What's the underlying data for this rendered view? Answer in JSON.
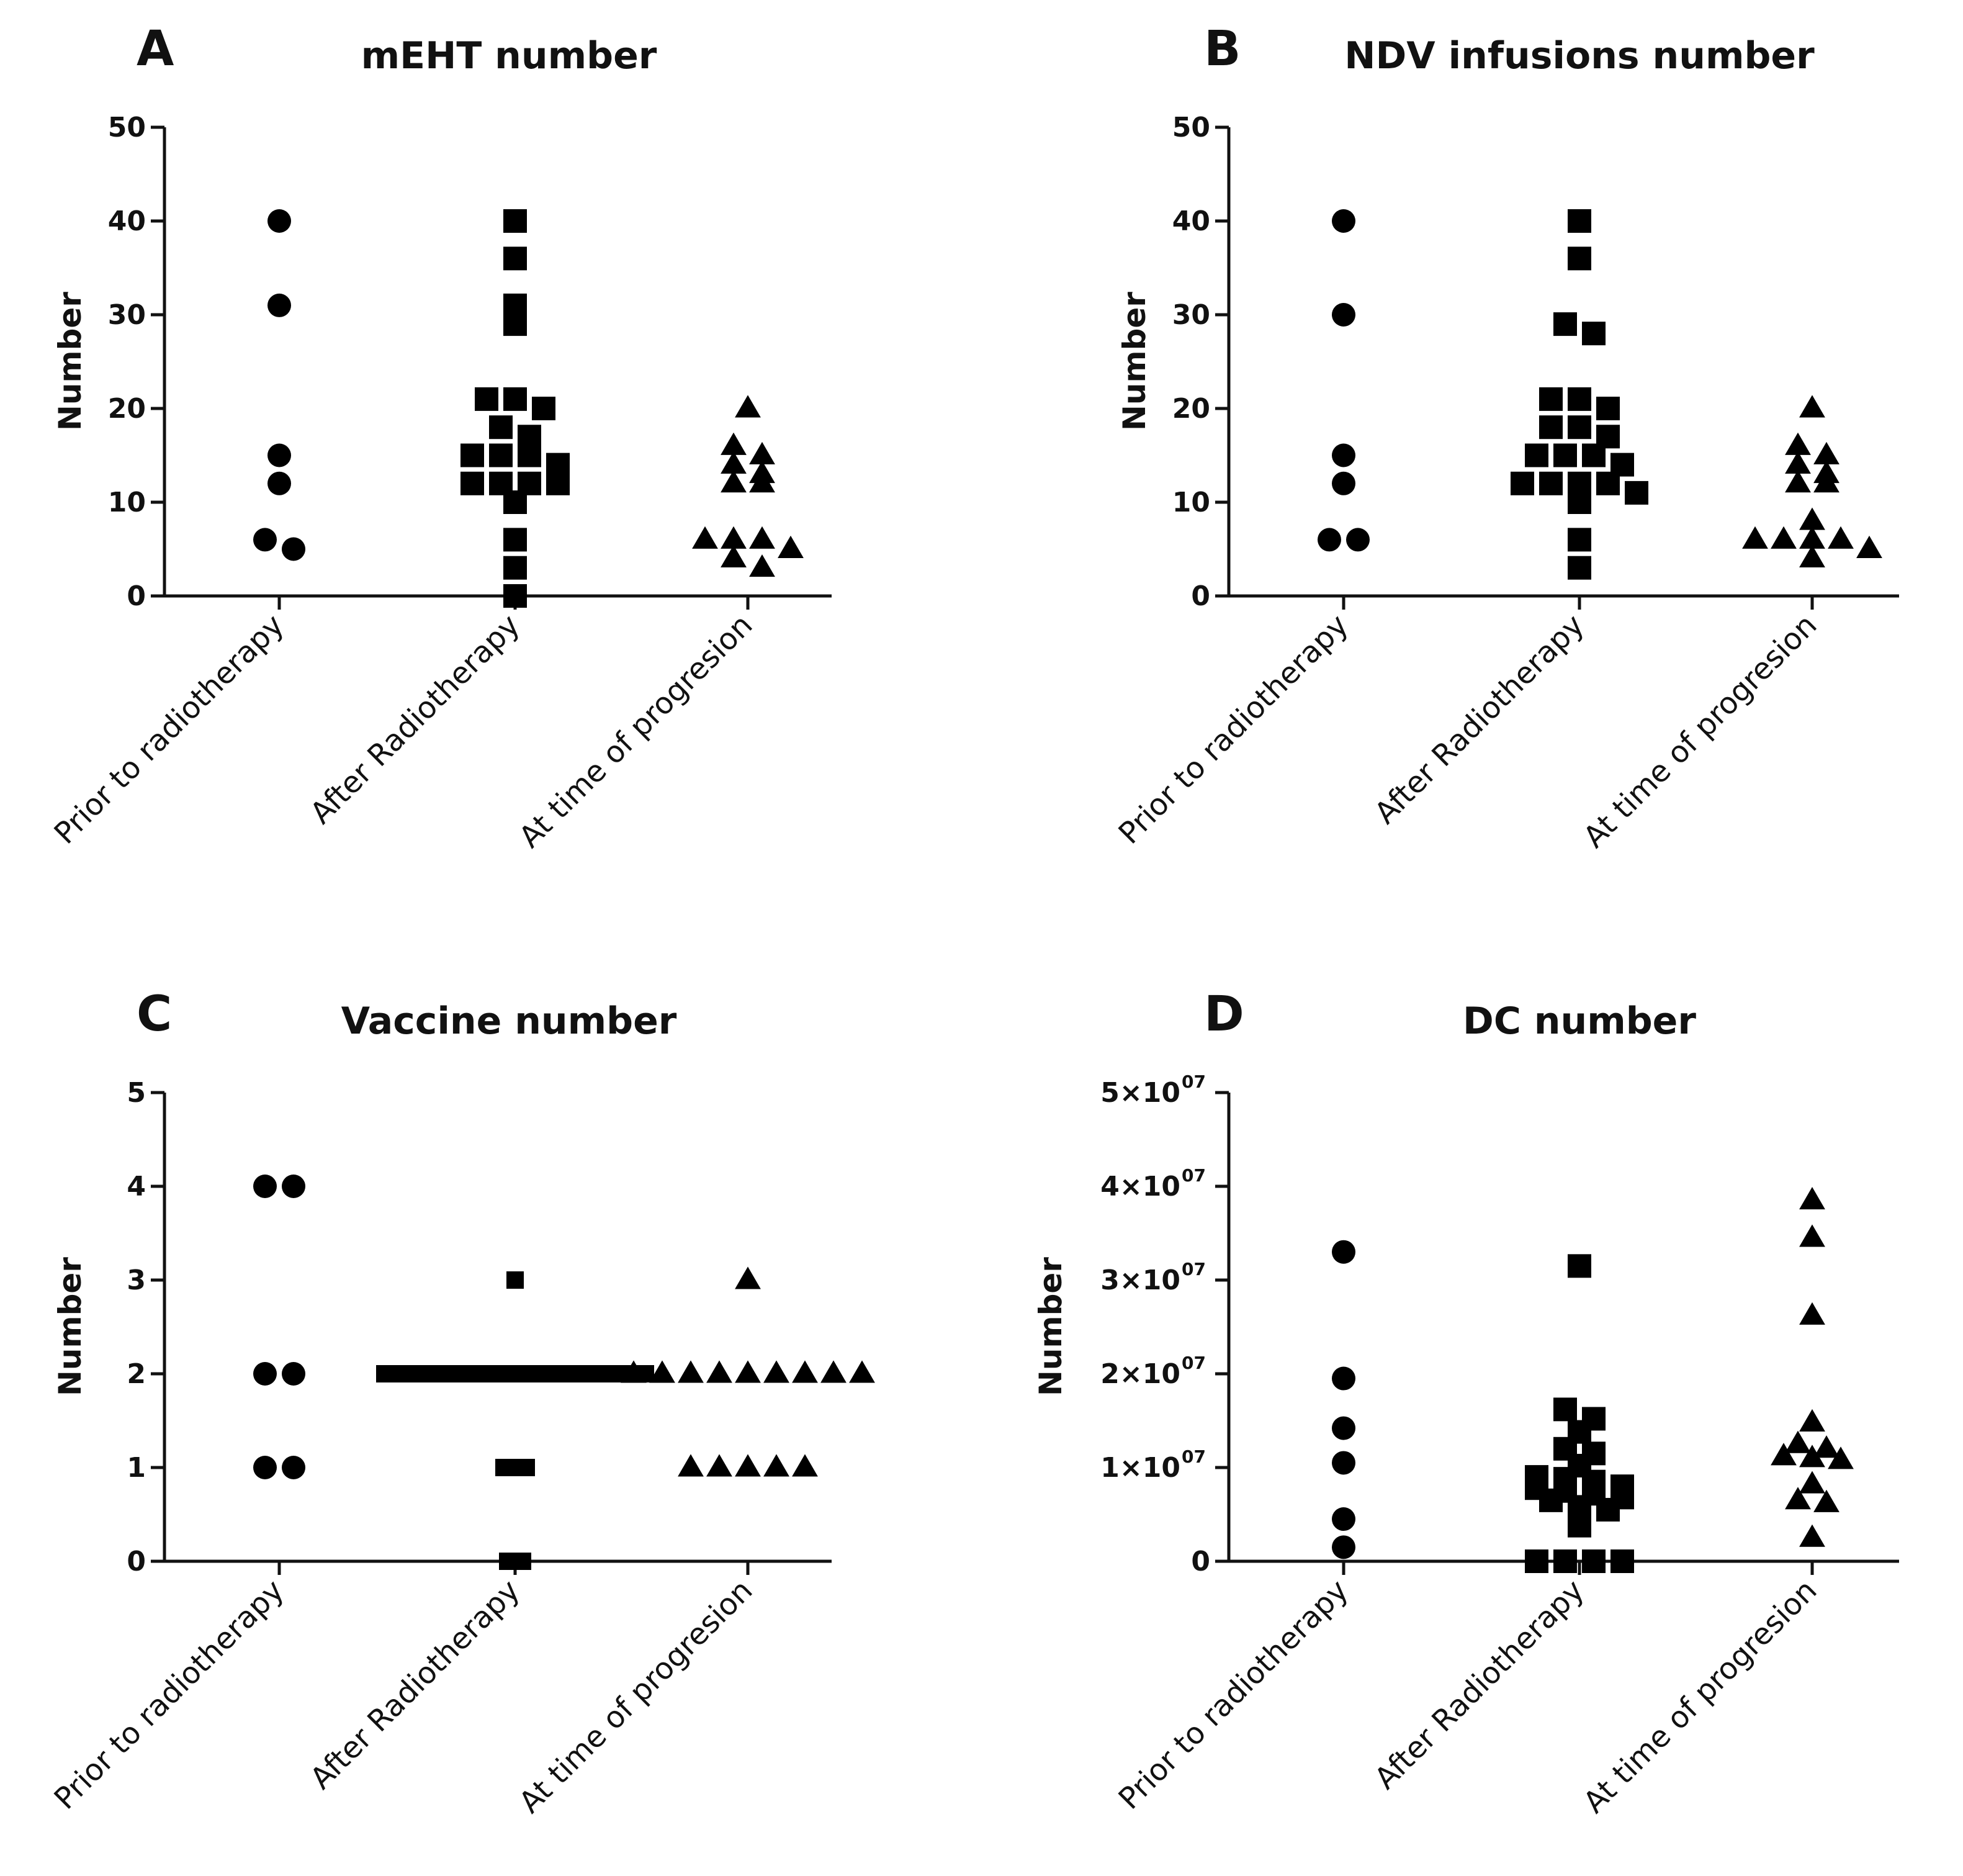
{
  "chart_data": [
    {
      "panel": "A",
      "type": "scatter",
      "title": "mEHT number",
      "ylabel": "Number",
      "ylim": [
        0,
        50
      ],
      "yticks": [
        0,
        10,
        20,
        30,
        40,
        50
      ],
      "ytick_labels": [
        "0",
        "10",
        "20",
        "30",
        "40",
        "50"
      ],
      "categories": [
        "Prior to radiotherapy",
        "After Radiotherapy",
        "At time of progresion"
      ],
      "series": [
        {
          "name": "Prior to radiotherapy",
          "marker": "circle",
          "values": [
            40,
            31,
            15,
            12,
            6,
            5
          ]
        },
        {
          "name": "After Radiotherapy",
          "marker": "square",
          "values": [
            40,
            36,
            31,
            29,
            21,
            21,
            20,
            18,
            17,
            15,
            15,
            15,
            14,
            12,
            12,
            12,
            12,
            10,
            6,
            3,
            0
          ]
        },
        {
          "name": "At time of progresion",
          "marker": "triangle",
          "values": [
            20,
            16,
            15,
            14,
            13,
            12,
            12,
            6,
            6,
            6,
            5,
            4,
            3
          ]
        }
      ]
    },
    {
      "panel": "B",
      "type": "scatter",
      "title": "NDV infusions number",
      "ylabel": "Number",
      "ylim": [
        0,
        50
      ],
      "yticks": [
        0,
        10,
        20,
        30,
        40,
        50
      ],
      "ytick_labels": [
        "0",
        "10",
        "20",
        "30",
        "40",
        "50"
      ],
      "categories": [
        "Prior to radiotherapy",
        "After Radiotherapy",
        "At time of progresion"
      ],
      "series": [
        {
          "name": "Prior to radiotherapy",
          "marker": "circle",
          "values": [
            40,
            30,
            15,
            12,
            6,
            6
          ]
        },
        {
          "name": "After Radiotherapy",
          "marker": "square",
          "values": [
            40,
            36,
            29,
            28,
            21,
            21,
            20,
            18,
            18,
            17,
            15,
            15,
            15,
            14,
            12,
            12,
            12,
            12,
            11,
            10,
            6,
            3
          ]
        },
        {
          "name": "At time of progresion",
          "marker": "triangle",
          "values": [
            20,
            16,
            15,
            14,
            13,
            12,
            12,
            8,
            6,
            6,
            6,
            6,
            5,
            4
          ]
        }
      ]
    },
    {
      "panel": "C",
      "type": "scatter",
      "title": "Vaccine number",
      "ylabel": "Number",
      "ylim": [
        0,
        5
      ],
      "yticks": [
        0,
        1,
        2,
        3,
        4,
        5
      ],
      "ytick_labels": [
        "0",
        "1",
        "2",
        "3",
        "4",
        "5"
      ],
      "categories": [
        "Prior to radiotherapy",
        "After Radiotherapy",
        "At time of progresion"
      ],
      "series": [
        {
          "name": "Prior to radiotherapy",
          "marker": "circle",
          "values": [
            4,
            4,
            2,
            2,
            1,
            1
          ]
        },
        {
          "name": "After Radiotherapy",
          "marker": "square",
          "values": [
            3,
            2,
            2,
            2,
            2,
            2,
            2,
            2,
            2,
            2,
            2,
            2,
            2,
            2,
            2,
            2,
            2,
            2,
            2,
            2,
            2,
            2,
            2,
            2,
            2,
            2,
            2,
            2,
            2,
            2,
            2,
            2,
            2,
            2,
            2,
            2,
            2,
            1,
            1,
            1,
            1,
            0,
            0,
            0
          ]
        },
        {
          "name": "At time of progresion",
          "marker": "triangle",
          "values": [
            3,
            2,
            2,
            2,
            2,
            2,
            2,
            2,
            2,
            2,
            1,
            1,
            1,
            1,
            1
          ]
        }
      ]
    },
    {
      "panel": "D",
      "type": "scatter",
      "title": "DC number",
      "ylabel": "Number",
      "ylim": [
        0,
        50000000
      ],
      "yticks": [
        0,
        10000000,
        20000000,
        30000000,
        40000000,
        50000000
      ],
      "ytick_labels": [
        "0",
        "1×10",
        "2×10",
        "3×10",
        "4×10",
        "5×10"
      ],
      "ytick_exponent": "07",
      "categories": [
        "Prior to radiotherapy",
        "After Radiotherapy",
        "At time of progresion"
      ],
      "series": [
        {
          "name": "Prior to radiotherapy",
          "marker": "circle",
          "values": [
            33000000,
            19500000,
            14200000,
            10500000,
            4500000,
            1500000
          ]
        },
        {
          "name": "After Radiotherapy",
          "marker": "square",
          "values": [
            31500000,
            16200000,
            15200000,
            13800000,
            12000000,
            11500000,
            10200000,
            9000000,
            8800000,
            8500000,
            8000000,
            7800000,
            7500000,
            7200000,
            6800000,
            6500000,
            5800000,
            5500000,
            5000000,
            3800000,
            0,
            0,
            0,
            0
          ]
        },
        {
          "name": "At time of progresion",
          "marker": "triangle",
          "values": [
            38500000,
            34500000,
            26200000,
            14800000,
            12500000,
            12000000,
            11200000,
            11000000,
            10800000,
            8200000,
            6500000,
            6200000,
            2500000
          ]
        }
      ]
    }
  ]
}
